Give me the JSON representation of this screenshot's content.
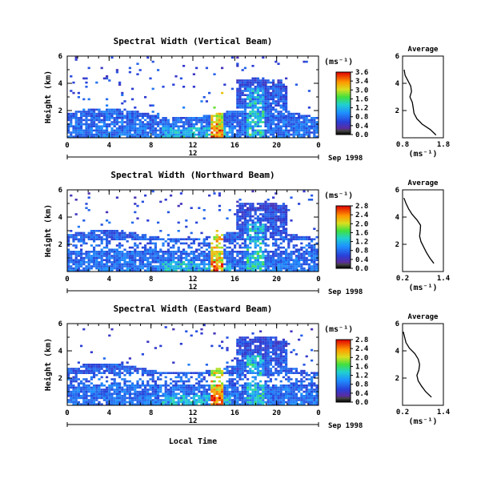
{
  "chart_data": [
    {
      "type": "heatmap",
      "title": "Spectral Width (Vertical Beam)",
      "ylabel": "Height (km)",
      "ylim": [
        0,
        6
      ],
      "yticks": [
        "6",
        "4",
        "2"
      ],
      "xlim": [
        0,
        24
      ],
      "xticks": [
        "0",
        "4",
        "8",
        "12",
        "16",
        "20",
        "0"
      ],
      "date_marker": "12",
      "date_label": "Sep 1998",
      "colorbar": {
        "unit": "(ms⁻¹)",
        "ticks": [
          "3.6",
          "3.4",
          "3.0",
          "1.6",
          "1.2",
          "0.8",
          "0.4",
          "0.0"
        ]
      },
      "profile": {
        "title": "Average",
        "xlabel": "(ms⁻¹)",
        "xticks": [
          "0.8",
          "1.8"
        ],
        "xlim": [
          0.8,
          1.8
        ],
        "yticks": [
          "6",
          "4",
          "2"
        ],
        "ylim": [
          0,
          6
        ],
        "height": [
          0.2,
          0.6,
          1.0,
          1.4,
          1.8,
          2.2,
          2.6,
          3.0,
          3.4,
          3.8,
          4.2,
          4.6,
          5.0
        ],
        "width": [
          1.62,
          1.48,
          1.28,
          1.15,
          1.08,
          1.06,
          1.04,
          0.98,
          1.02,
          1.0,
          0.93,
          0.86,
          0.84
        ]
      }
    },
    {
      "type": "heatmap",
      "title": "Spectral Width (Northward Beam)",
      "ylabel": "Height (km)",
      "ylim": [
        0,
        6
      ],
      "yticks": [
        "6",
        "4",
        "2"
      ],
      "xlim": [
        0,
        24
      ],
      "xticks": [
        "0",
        "4",
        "8",
        "12",
        "16",
        "20",
        "0"
      ],
      "date_marker": "12",
      "date_label": "Sep 1998",
      "colorbar": {
        "unit": "(ms⁻¹)",
        "ticks": [
          "2.8",
          "2.4",
          "2.0",
          "1.6",
          "1.2",
          "0.8",
          "0.4",
          "0.0"
        ]
      },
      "profile": {
        "title": "Average",
        "xlabel": "(ms⁻¹)",
        "xticks": [
          "0.2",
          "1.4"
        ],
        "xlim": [
          0.2,
          1.4
        ],
        "yticks": [
          "6",
          "4",
          "2"
        ],
        "ylim": [
          0,
          6
        ],
        "height": [
          0.6,
          1.0,
          1.4,
          1.8,
          2.2,
          2.6,
          3.0,
          3.4,
          3.8,
          4.2,
          4.6,
          5.0,
          5.4
        ],
        "width": [
          1.12,
          1.0,
          0.9,
          0.82,
          0.74,
          0.7,
          0.72,
          0.73,
          0.62,
          0.48,
          0.38,
          0.3,
          0.24
        ]
      }
    },
    {
      "type": "heatmap",
      "title": "Spectral Width (Eastward Beam)",
      "ylabel": "Height (km)",
      "xlabel": "Local Time",
      "ylim": [
        0,
        6
      ],
      "yticks": [
        "6",
        "4",
        "2"
      ],
      "xlim": [
        0,
        24
      ],
      "xticks": [
        "0",
        "4",
        "8",
        "12",
        "16",
        "20",
        "0"
      ],
      "date_marker": "12",
      "date_label": "Sep 1998",
      "colorbar": {
        "unit": "(ms⁻¹)",
        "ticks": [
          "2.8",
          "2.4",
          "2.0",
          "1.6",
          "1.2",
          "0.8",
          "0.4",
          "0.0"
        ]
      },
      "profile": {
        "title": "Average",
        "xlabel": "(ms⁻¹)",
        "xticks": [
          "0.2",
          "1.4"
        ],
        "xlim": [
          0.2,
          1.4
        ],
        "yticks": [
          "6",
          "4",
          "2"
        ],
        "ylim": [
          0,
          6
        ],
        "height": [
          0.6,
          1.0,
          1.4,
          1.8,
          2.2,
          2.6,
          3.0,
          3.4,
          3.8,
          4.2,
          4.6,
          5.0,
          5.4
        ],
        "width": [
          1.05,
          0.88,
          0.76,
          0.66,
          0.62,
          0.68,
          0.7,
          0.66,
          0.56,
          0.4,
          0.3,
          0.26,
          0.22
        ]
      }
    }
  ]
}
